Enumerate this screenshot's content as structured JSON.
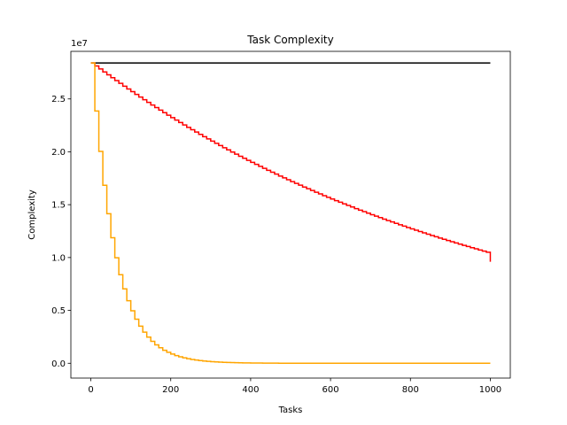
{
  "chart_data": {
    "type": "line",
    "step": "post",
    "title": "Task Complexity",
    "xlabel": "Tasks",
    "ylabel": "Complexity",
    "y_offset_label": "1e7",
    "y_scale": 10000000,
    "xlim": [
      -50,
      1050
    ],
    "ylim": [
      -1400000,
      29500000
    ],
    "x_ticks": [
      0,
      200,
      400,
      600,
      800,
      1000
    ],
    "x_tick_labels": [
      "0",
      "200",
      "400",
      "600",
      "800",
      "1000"
    ],
    "y_ticks": [
      0,
      5000000,
      10000000,
      15000000,
      20000000,
      25000000
    ],
    "y_tick_labels": [
      "0.0",
      "0.5",
      "1.0",
      "1.5",
      "2.0",
      "2.5"
    ],
    "grid": false,
    "series": [
      {
        "color": "#000000",
        "points": [
          [
            0,
            28400000
          ],
          [
            1000,
            28400000
          ]
        ]
      },
      {
        "color": "#ff0000",
        "start": 28400000,
        "end": 9600000,
        "x_start": 0,
        "x_end": 1000,
        "step_width": 10,
        "decay": 0.99
      },
      {
        "color": "#ffa500",
        "start": 28400000,
        "end": 0,
        "x_start": 0,
        "x_end": 1000,
        "step_width": 10,
        "decay": 0.84
      }
    ]
  }
}
